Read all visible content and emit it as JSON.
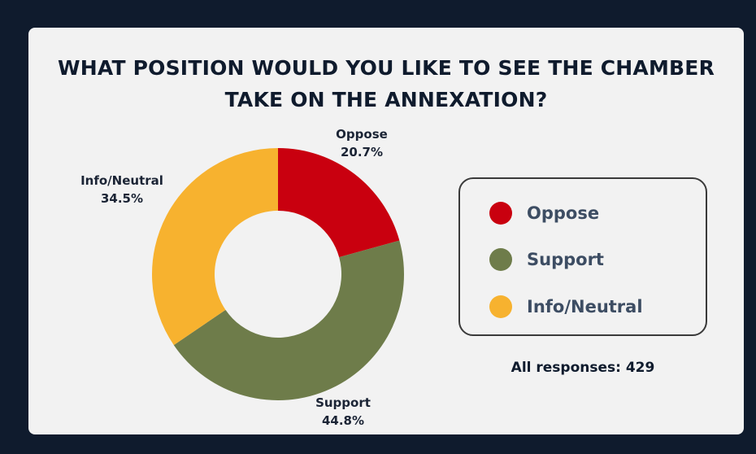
{
  "title_lines": [
    "WHAT POSITION WOULD YOU LIKE TO SEE THE CHAMBER",
    "TAKE ON THE ANNEXATION?"
  ],
  "chart_data": {
    "type": "pie",
    "title": "WHAT POSITION WOULD YOU LIKE TO SEE THE CHAMBER TAKE ON THE ANNEXATION?",
    "donut": true,
    "slices": [
      {
        "label": "Oppose",
        "value": 20.7,
        "value_label": "20.7%",
        "color": "#c9000f"
      },
      {
        "label": "Support",
        "value": 44.8,
        "value_label": "44.8%",
        "color": "#6e7c4a"
      },
      {
        "label": "Info/Neutral",
        "value": 34.5,
        "value_label": "34.5%",
        "color": "#f7b22f"
      }
    ],
    "legend": {
      "position": "right",
      "items": [
        "Oppose",
        "Support",
        "Info/Neutral"
      ]
    }
  },
  "total_text": "All responses: 429"
}
